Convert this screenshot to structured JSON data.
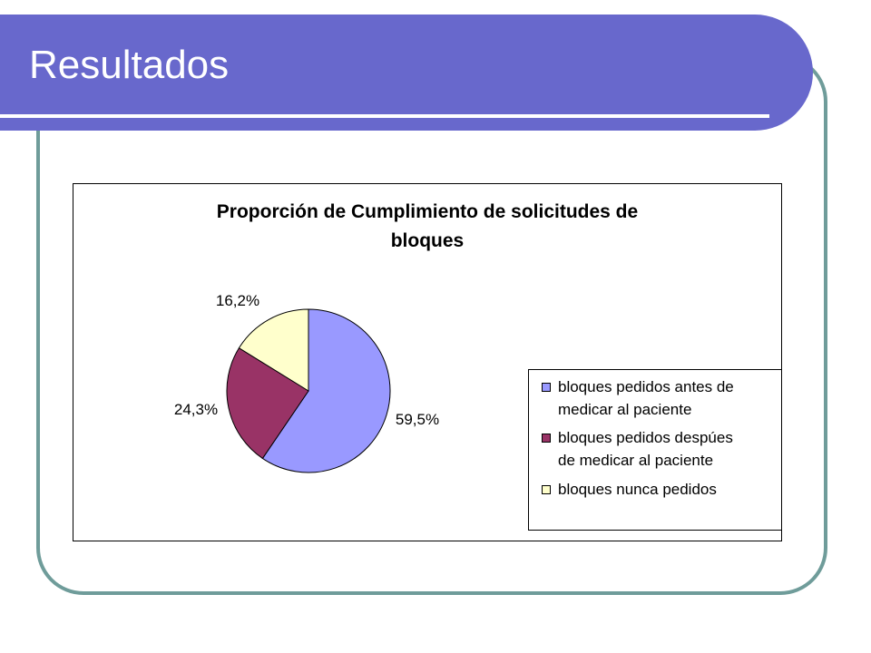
{
  "slide": {
    "title": "Resultados",
    "colors": {
      "title_bar": "#6868cc",
      "frame": "#6f9c9a"
    }
  },
  "chart_data": {
    "type": "pie",
    "title_lines": [
      "Proporción de Cumplimiento de solicitudes de",
      "bloques"
    ],
    "slices": [
      {
        "label": "bloques pedidos antes de medicar al paciente",
        "value": 59.5,
        "display": "59,5%",
        "color": "#9999ff"
      },
      {
        "label": "bloques pedidos despúes de medicar al paciente",
        "value": 24.3,
        "display": "24,3%",
        "color": "#993366"
      },
      {
        "label": "bloques nunca pedidos",
        "value": 16.2,
        "display": "16,2%",
        "color": "#ffffcc"
      }
    ],
    "legend": {
      "position": "right",
      "items": [
        {
          "lines": [
            "bloques pedidos antes de",
            "medicar al paciente"
          ],
          "color": "#9999ff"
        },
        {
          "lines": [
            "bloques pedidos despúes",
            "de medicar al paciente"
          ],
          "color": "#993366"
        },
        {
          "lines": [
            "bloques nunca pedidos"
          ],
          "color": "#ffffcc"
        }
      ]
    }
  }
}
